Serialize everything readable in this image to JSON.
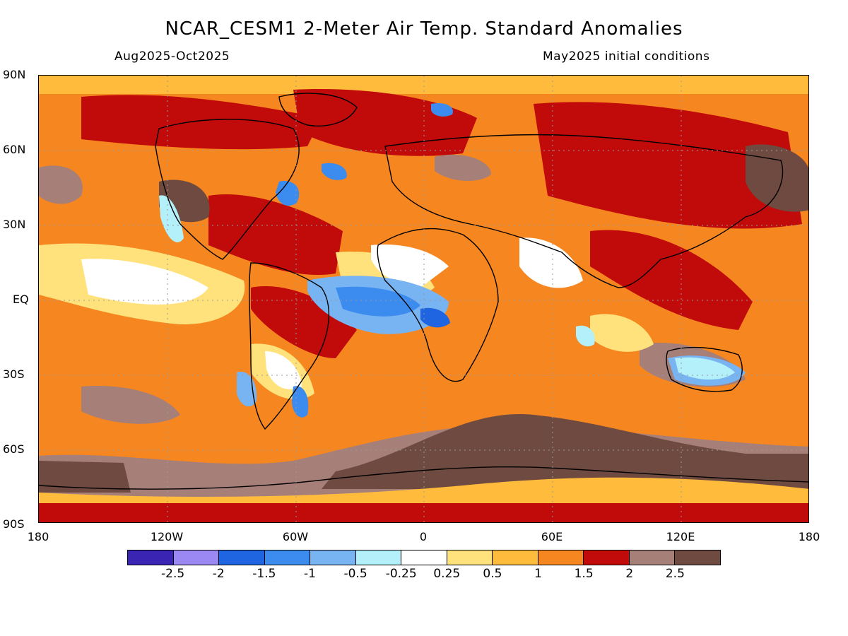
{
  "title": "NCAR_CESM1 2-Meter Air Temp. Standard Anomalies",
  "subtitle_left": "Aug2025-Oct2025",
  "subtitle_right": "May2025 initial conditions",
  "lat_labels": [
    "90N",
    "60N",
    "30N",
    "EQ",
    "30S",
    "60S",
    "90S"
  ],
  "lon_labels": [
    "180",
    "120W",
    "60W",
    "0",
    "60E",
    "120E",
    "180"
  ],
  "colorbar": {
    "colors": [
      "#3a24b4",
      "#9b88f2",
      "#1f64e1",
      "#3c8cef",
      "#78b4f2",
      "#b4f0fa",
      "#ffffff",
      "#ffe27b",
      "#ffbb3c",
      "#f6861f",
      "#c10a0a",
      "#a67f79",
      "#6e4a40"
    ],
    "labels": [
      "-2.5",
      "-2",
      "-1.5",
      "-1",
      "-0.5",
      "-0.25",
      "0.25",
      "0.5",
      "1",
      "1.5",
      "2",
      "2.5"
    ]
  }
}
